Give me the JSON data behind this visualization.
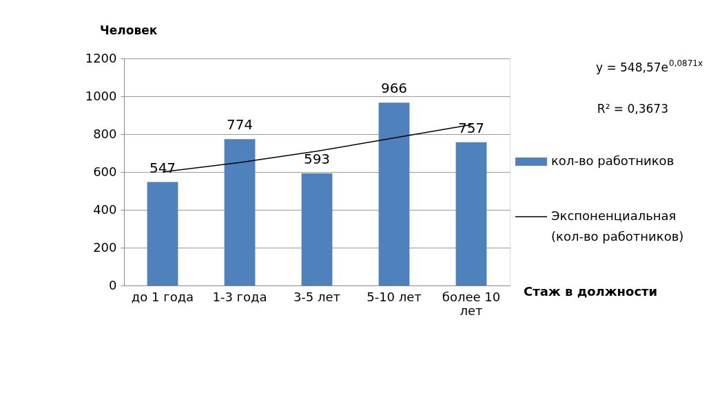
{
  "chart_data": {
    "type": "bar",
    "xlabel": "Стаж в должности",
    "ylabel": "Человек",
    "categories": [
      "до 1 года",
      "1-3 года",
      "3-5 лет",
      "5-10 лет",
      "более 10 лет"
    ],
    "series": [
      {
        "name": "кол-во работников",
        "color": "#4f81bd",
        "values": [
          547,
          774,
          593,
          966,
          757
        ],
        "value_labels": [
          "547",
          "774",
          "593",
          "966",
          "757"
        ]
      },
      {
        "name": "Экспоненциальная (кол-во работников)",
        "type": "line",
        "color": "#000000",
        "values": [
          600,
          650,
          710,
          780,
          850
        ]
      }
    ],
    "ylim": [
      0,
      1200
    ],
    "yticks": [
      0,
      200,
      400,
      600,
      800,
      1000,
      1200
    ],
    "grid": "y",
    "legend": "right",
    "annotations": [
      "y = 548,57e$^{0,0871x}$",
      "R² = 0,3673"
    ]
  }
}
